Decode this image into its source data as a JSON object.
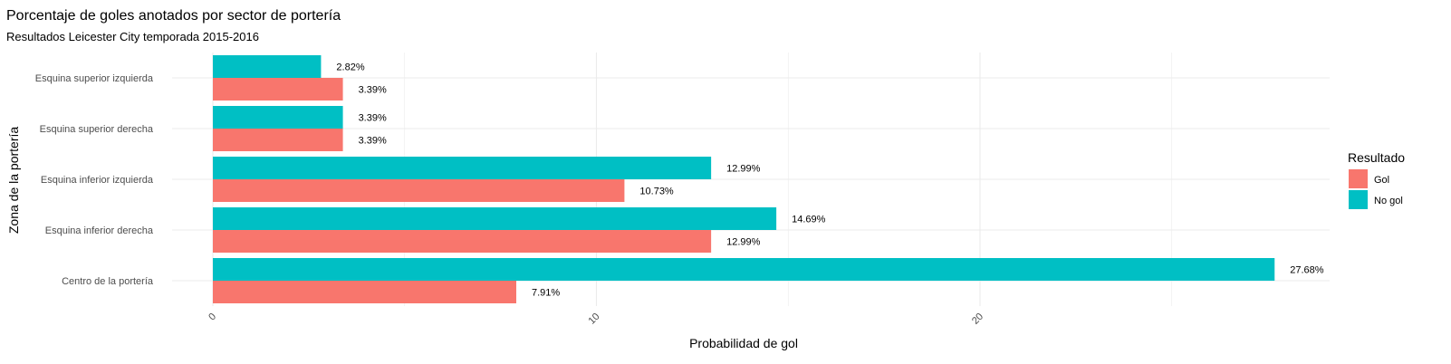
{
  "chart_data": {
    "type": "bar",
    "orientation": "horizontal",
    "title": "Porcentaje de goles anotados por sector de portería",
    "subtitle": "Resultados Leicester City temporada 2015-2016",
    "xlabel": "Probabilidad de gol",
    "ylabel": "Zona de la portería",
    "xlim": [
      0,
      29
    ],
    "xticks": [
      0,
      10,
      20
    ],
    "grid": true,
    "legend": {
      "title": "Resultado",
      "position": "right"
    },
    "categories": [
      "Esquina superior izquierda",
      "Esquina superior derecha",
      "Esquina inferior izquierda",
      "Esquina inferior derecha",
      "Centro de la portería"
    ],
    "series": [
      {
        "name": "Gol",
        "color": "#F8766D",
        "values": [
          3.39,
          3.39,
          10.73,
          12.99,
          7.91
        ],
        "labels": [
          "3.39%",
          "3.39%",
          "10.73%",
          "12.99%",
          "7.91%"
        ]
      },
      {
        "name": "No gol",
        "color": "#00BFC4",
        "values": [
          2.82,
          3.39,
          12.99,
          14.69,
          27.68
        ],
        "labels": [
          "2.82%",
          "3.39%",
          "12.99%",
          "14.69%",
          "27.68%"
        ]
      }
    ]
  }
}
